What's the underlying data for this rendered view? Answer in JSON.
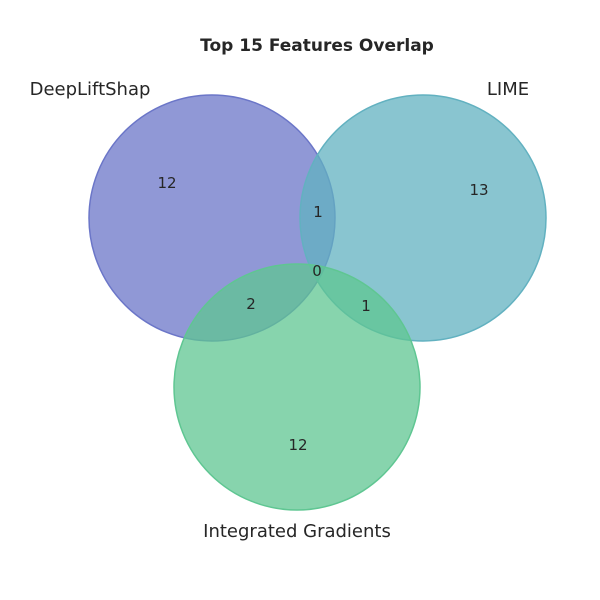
{
  "chart_data": {
    "type": "venn",
    "title": "Top 15 Features Overlap",
    "sets": [
      {
        "name": "DeepLiftShap",
        "color": "#6b76c8"
      },
      {
        "name": "LIME",
        "color": "#62b1c0"
      },
      {
        "name": "Integrated Gradients",
        "color": "#5fc692"
      }
    ],
    "regions": [
      {
        "sets": [
          "DeepLiftShap"
        ],
        "count": 12
      },
      {
        "sets": [
          "LIME"
        ],
        "count": 13
      },
      {
        "sets": [
          "Integrated Gradients"
        ],
        "count": 12
      },
      {
        "sets": [
          "DeepLiftShap",
          "LIME"
        ],
        "count": 1
      },
      {
        "sets": [
          "DeepLiftShap",
          "Integrated Gradients"
        ],
        "count": 2
      },
      {
        "sets": [
          "LIME",
          "Integrated Gradients"
        ],
        "count": 1
      },
      {
        "sets": [
          "DeepLiftShap",
          "LIME",
          "Integrated Gradients"
        ],
        "count": 0
      }
    ]
  }
}
